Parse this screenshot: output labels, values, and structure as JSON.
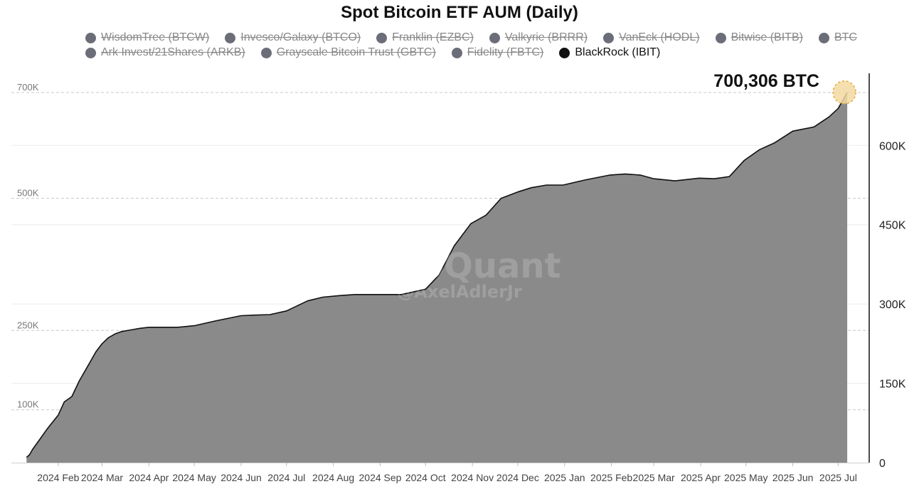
{
  "chart_data": {
    "type": "area",
    "title": "Spot Bitcoin ETF AUM (Daily)",
    "legend": {
      "placement": "top",
      "items": [
        {
          "label": "WisdomTree (BTCW)",
          "visible": false
        },
        {
          "label": "Invesco/Galaxy (BTCO)",
          "visible": false
        },
        {
          "label": "Franklin (EZBC)",
          "visible": false
        },
        {
          "label": "Valkyrie (BRRR)",
          "visible": false
        },
        {
          "label": "VanEck (HODL)",
          "visible": false
        },
        {
          "label": "Bitwise (BITB)",
          "visible": false
        },
        {
          "label": "BTC",
          "visible": false
        },
        {
          "label": "Ark Invest/21Shares (ARKB)",
          "visible": false
        },
        {
          "label": "Grayscale Bitcoin Trust (GBTC)",
          "visible": false
        },
        {
          "label": "Fidelity (FBTC)",
          "visible": false
        },
        {
          "label": "BlackRock (IBIT)",
          "visible": true
        }
      ]
    },
    "annotation": "700,306 BTC",
    "x_ticks": [
      "2024 Feb",
      "2024 Mar",
      "2024 Apr",
      "2024 May",
      "2024 Jun",
      "2024 Jul",
      "2024 Aug",
      "2024 Sep",
      "2024 Oct",
      "2024 Nov",
      "2024 Dec",
      "2025 Jan",
      "2025 Feb",
      "2025 Mar",
      "2025 Apr",
      "2025 May",
      "2025 Jun",
      "2025 Jul"
    ],
    "y_left_ticks": [
      "100K",
      "250K",
      "500K",
      "700K"
    ],
    "y_right_ticks": [
      "0",
      "150K",
      "300K",
      "450K",
      "600K"
    ],
    "ylim": [
      0,
      700000
    ],
    "series": [
      {
        "name": "BlackRock (IBIT)",
        "color": "#8a8a8a",
        "x": [
          "2024-01-11",
          "2024-01-13",
          "2024-01-15",
          "2024-01-20",
          "2024-01-25",
          "2024-02-01",
          "2024-02-05",
          "2024-02-10",
          "2024-02-15",
          "2024-02-20",
          "2024-02-26",
          "2024-03-01",
          "2024-03-05",
          "2024-03-10",
          "2024-03-14",
          "2024-03-20",
          "2024-03-26",
          "2024-04-01",
          "2024-04-10",
          "2024-04-20",
          "2024-05-01",
          "2024-05-15",
          "2024-06-01",
          "2024-06-10",
          "2024-06-20",
          "2024-07-01",
          "2024-07-15",
          "2024-07-25",
          "2024-08-05",
          "2024-08-15",
          "2024-09-01",
          "2024-09-15",
          "2024-10-01",
          "2024-10-10",
          "2024-10-20",
          "2024-10-31",
          "2024-11-10",
          "2024-11-20",
          "2024-12-01",
          "2024-12-10",
          "2024-12-20",
          "2024-12-31",
          "2025-01-15",
          "2025-01-31",
          "2025-02-10",
          "2025-02-20",
          "2025-03-01",
          "2025-03-15",
          "2025-03-31",
          "2025-04-10",
          "2025-04-20",
          "2025-04-30",
          "2025-05-10",
          "2025-05-20",
          "2025-06-01",
          "2025-06-15",
          "2025-06-25",
          "2025-07-01",
          "2025-07-07"
        ],
        "values": [
          10000,
          15000,
          25000,
          45000,
          65000,
          90000,
          115000,
          125000,
          155000,
          180000,
          210000,
          225000,
          236000,
          244000,
          248000,
          251000,
          254000,
          256000,
          256000,
          256000,
          259000,
          268000,
          278000,
          279000,
          280000,
          287000,
          306000,
          313000,
          316000,
          318000,
          318000,
          318000,
          328000,
          355000,
          410000,
          452000,
          468000,
          500000,
          512000,
          520000,
          525000,
          525000,
          535000,
          544000,
          546000,
          544000,
          537000,
          533000,
          538000,
          537000,
          541000,
          572000,
          592000,
          605000,
          627000,
          635000,
          654000,
          670000,
          700306
        ]
      }
    ],
    "watermark": [
      "CryptoQuant",
      "@AxelAdlerJr"
    ],
    "grid": true
  }
}
